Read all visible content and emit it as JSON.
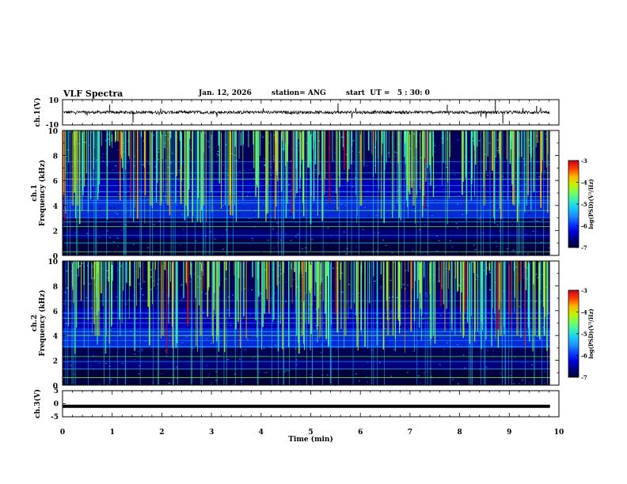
{
  "header": {
    "title": "VLF Spectra",
    "date": "Jan. 12, 2026",
    "station": "station= ANG",
    "start": "start  UT =   5 : 30: 0"
  },
  "colors": {
    "colormap": [
      "#000033",
      "#00007a",
      "#0000d8",
      "#0a3cff",
      "#1e8cff",
      "#19c8ff",
      "#3cf0b4",
      "#78ff5a",
      "#c8f000",
      "#ffb400",
      "#ff3c00",
      "#c8001e",
      "#ffffff"
    ]
  },
  "chart_data": [
    {
      "type": "line",
      "name": "ch1-waveform",
      "ylabel": "ch.1(V)",
      "ylim": [
        -10,
        10
      ],
      "yticks": [
        "10",
        "-10"
      ],
      "baseline": 0
    },
    {
      "type": "heatmap",
      "name": "ch1-spectrogram",
      "ylabel": "Frequency (kHz)",
      "ylabel2": "ch.1",
      "ylim": [
        0,
        10
      ],
      "yticks": [
        "0",
        "2",
        "4",
        "6",
        "8",
        "10"
      ],
      "colorbar": {
        "label": "log(PSD)(V²/Hz)",
        "range": [
          -7,
          -3
        ],
        "ticks": [
          "-3",
          "-4",
          "-5",
          "-6",
          "-7"
        ]
      },
      "lines_khz": [
        0.3,
        1.0,
        1.6,
        2.3,
        2.7,
        3.0,
        3.6,
        4.2,
        4.4,
        4.7,
        5.1,
        5.6,
        6.1,
        6.6,
        7.5
      ]
    },
    {
      "type": "heatmap",
      "name": "ch2-spectrogram",
      "ylabel": "Frequency (kHz)",
      "ylabel2": "ch.2",
      "ylim": [
        0,
        10
      ],
      "yticks": [
        "0",
        "2",
        "4",
        "6",
        "8",
        "10"
      ],
      "colorbar": {
        "label": "log(PSD)(V²/Hz)",
        "range": [
          -7,
          -3
        ],
        "ticks": [
          "-3",
          "-4",
          "-5",
          "-6",
          "-7"
        ]
      },
      "lines_khz": [
        0.6,
        1.3,
        1.9,
        2.3,
        3.1,
        3.6,
        4.0,
        4.3,
        5.0,
        5.4,
        5.8,
        6.8
      ]
    },
    {
      "type": "line",
      "name": "ch3-signal",
      "ylabel": "ch.3(V)",
      "ylim": [
        -5,
        5
      ],
      "yticks": [
        "5",
        "0",
        "-5"
      ],
      "level": -1
    }
  ],
  "xaxis": {
    "label": "Time (min)",
    "xlim": [
      0,
      10
    ],
    "ticks": [
      "0",
      "1",
      "2",
      "3",
      "4",
      "5",
      "6",
      "7",
      "8",
      "9",
      "10"
    ],
    "data_end": 9.82
  }
}
